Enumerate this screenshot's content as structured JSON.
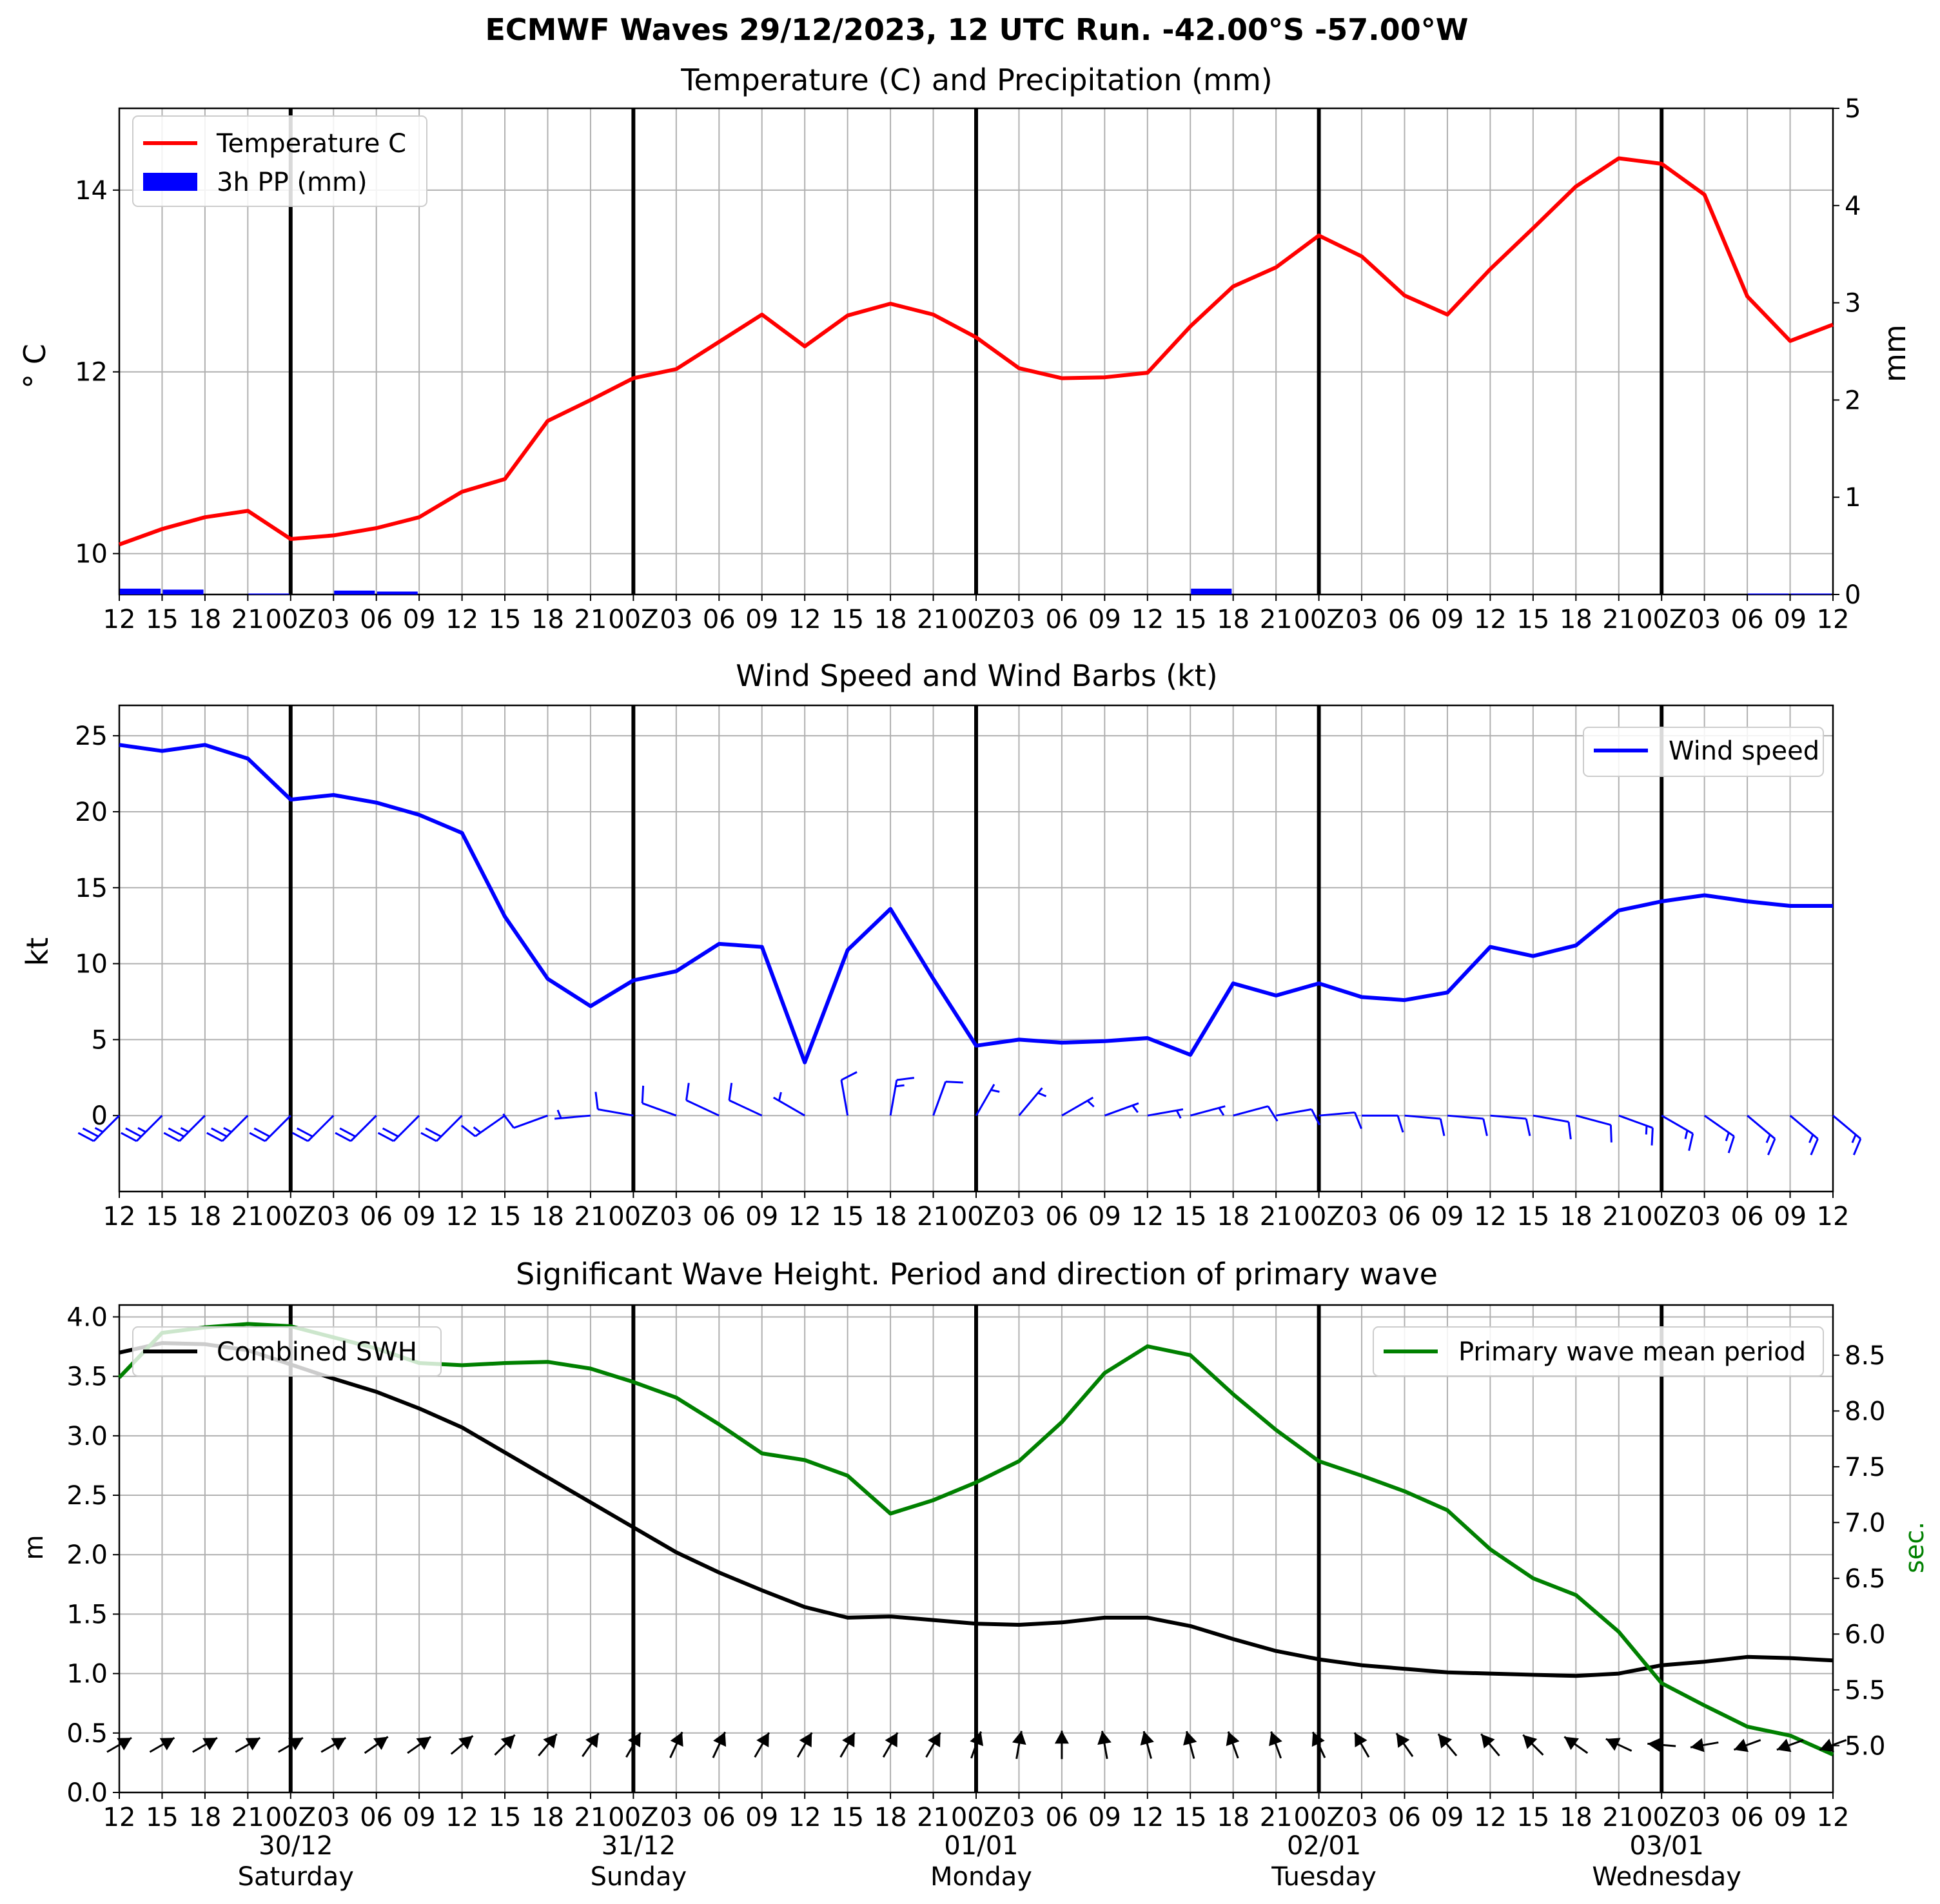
{
  "figure": {
    "title": "ECMWF Waves 29/12/2023, 12 UTC Run. -42.00°S -57.00°W"
  },
  "x_axis": {
    "tick_labels": [
      "12",
      "15",
      "18",
      "21",
      "00Z",
      "03",
      "06",
      "09",
      "12",
      "15",
      "18",
      "21",
      "00Z",
      "03",
      "06",
      "09",
      "12",
      "15",
      "18",
      "21",
      "00Z",
      "03",
      "06",
      "09",
      "12",
      "15",
      "18",
      "21",
      "00Z",
      "03",
      "06",
      "09",
      "12",
      "15",
      "18",
      "21",
      "00Z",
      "03",
      "06",
      "09",
      "12"
    ],
    "date_labels": [
      "30/12",
      "31/12",
      "01/01",
      "02/01",
      "03/01"
    ],
    "day_labels": [
      "Saturday",
      "Sunday",
      "Monday",
      "Tuesday",
      "Wednesday"
    ]
  },
  "colors": {
    "temperature": "#ff0000",
    "precipitation": "#0000ff",
    "wind": "#0000ff",
    "swh": "#000000",
    "period": "#008000",
    "grid": "#b0b0b0"
  },
  "chart_data": [
    {
      "type": "line",
      "title": "Temperature (C) and Precipitation (mm)",
      "ylabel": "$^\\circ$C",
      "ylabel_display": "° C",
      "y2label": "mm",
      "ylim": [
        9.55,
        14.9
      ],
      "y2lim": [
        0,
        5
      ],
      "yticks": [
        "10",
        "12",
        "14"
      ],
      "y2ticks": [
        "0",
        "1",
        "2",
        "3",
        "4",
        "5"
      ],
      "grid": true,
      "legend_position": "upper left",
      "series": [
        {
          "name": "Temperature C",
          "axis": "left",
          "values": [
            10.1,
            10.27,
            10.4,
            10.47,
            10.16,
            10.2,
            10.28,
            10.4,
            10.68,
            10.82,
            11.46,
            11.69,
            11.93,
            12.03,
            12.33,
            12.63,
            12.28,
            12.62,
            12.75,
            12.63,
            12.38,
            12.04,
            11.93,
            11.94,
            11.99,
            12.5,
            12.94,
            13.15,
            13.5,
            13.27,
            12.84,
            12.63,
            13.13,
            13.58,
            14.04,
            14.35,
            14.29,
            13.95,
            12.83,
            12.34,
            12.52
          ]
        },
        {
          "name": "3h PP (mm)",
          "axis": "right",
          "kind": "bar",
          "values": [
            0.06,
            0.05,
            0,
            0.01,
            0,
            0.04,
            0.03,
            0,
            0,
            0,
            0,
            0,
            0,
            0,
            0,
            0,
            0,
            0,
            0,
            0,
            0,
            0,
            0,
            0,
            0,
            0.06,
            0,
            0,
            0,
            0,
            0,
            0,
            0,
            0,
            0,
            0,
            0,
            0,
            0.01,
            0.01,
            0.01
          ]
        }
      ]
    },
    {
      "type": "line",
      "title": "Wind Speed and Wind Barbs (kt)",
      "ylabel": "kt",
      "ylim": [
        -5,
        27
      ],
      "yticks": [
        "0",
        "5",
        "10",
        "15",
        "20",
        "25"
      ],
      "grid": true,
      "legend_position": "upper right",
      "series": [
        {
          "name": "Wind speed",
          "values": [
            24.4,
            24.0,
            24.4,
            23.5,
            20.8,
            21.1,
            20.6,
            19.8,
            18.6,
            13.1,
            9.0,
            7.2,
            8.9,
            9.5,
            11.3,
            11.1,
            3.5,
            10.9,
            13.6,
            9.0,
            4.6,
            5.0,
            4.8,
            4.9,
            5.1,
            4.0,
            8.7,
            7.9,
            8.7,
            7.8,
            7.6,
            8.1,
            11.1,
            10.5,
            11.2,
            13.5,
            14.1,
            14.5,
            14.1,
            13.8,
            13.8
          ]
        }
      ],
      "wind_barbs": {
        "direction_from_deg": [
          225,
          225,
          225,
          225,
          225,
          225,
          225,
          225,
          225,
          235,
          250,
          265,
          280,
          290,
          295,
          295,
          300,
          350,
          10,
          20,
          30,
          40,
          60,
          70,
          80,
          75,
          75,
          80,
          85,
          90,
          95,
          95,
          95,
          100,
          105,
          110,
          120,
          125,
          130,
          130,
          130
        ],
        "speed_kt": [
          24.4,
          24.0,
          24.4,
          23.5,
          20.8,
          21.1,
          20.6,
          19.8,
          18.6,
          13.1,
          9.0,
          7.2,
          8.9,
          9.5,
          11.3,
          11.1,
          3.5,
          10.9,
          13.6,
          9.0,
          4.6,
          5.0,
          4.8,
          4.9,
          5.1,
          4.0,
          8.7,
          7.9,
          8.7,
          7.8,
          7.6,
          8.1,
          11.1,
          10.5,
          11.2,
          13.5,
          14.1,
          14.5,
          14.1,
          13.8,
          13.8
        ]
      }
    },
    {
      "type": "line",
      "title": "Significant Wave Height. Period and direction of primary wave",
      "ylabel": "m",
      "y2label": "sec.",
      "ylim": [
        0,
        4.1
      ],
      "y2lim": [
        4.58,
        8.95
      ],
      "yticks": [
        "0.0",
        "0.5",
        "1.0",
        "1.5",
        "2.0",
        "2.5",
        "3.0",
        "3.5",
        "4.0"
      ],
      "y2ticks": [
        "5.0",
        "5.5",
        "6.0",
        "6.5",
        "7.0",
        "7.5",
        "8.0",
        "8.5"
      ],
      "grid": true,
      "legend_positions": [
        "upper left",
        "upper right"
      ],
      "series": [
        {
          "name": "Combined SWH",
          "axis": "left",
          "values": [
            3.7,
            3.78,
            3.77,
            3.72,
            3.6,
            3.48,
            3.37,
            3.23,
            3.07,
            2.86,
            2.65,
            2.44,
            2.23,
            2.02,
            1.85,
            1.7,
            1.56,
            1.47,
            1.48,
            1.45,
            1.42,
            1.41,
            1.43,
            1.47,
            1.47,
            1.4,
            1.29,
            1.19,
            1.12,
            1.07,
            1.04,
            1.01,
            1.0,
            0.99,
            0.98,
            1.0,
            1.07,
            1.1,
            1.14,
            1.13,
            1.11
          ]
        },
        {
          "name": "Primary wave mean period",
          "axis": "right",
          "values": [
            8.3,
            8.7,
            8.75,
            8.78,
            8.76,
            8.66,
            8.56,
            8.43,
            8.41,
            8.43,
            8.44,
            8.38,
            8.26,
            8.12,
            7.88,
            7.62,
            7.56,
            7.42,
            7.08,
            7.2,
            7.36,
            7.55,
            7.9,
            8.34,
            8.58,
            8.5,
            8.15,
            7.83,
            7.55,
            7.42,
            7.28,
            7.11,
            6.76,
            6.5,
            6.35,
            6.02,
            5.56,
            5.36,
            5.17,
            5.09,
            4.92
          ]
        }
      ],
      "wave_direction_from_deg": [
        240,
        240,
        240,
        240,
        240,
        240,
        235,
        235,
        230,
        225,
        220,
        215,
        210,
        205,
        205,
        210,
        210,
        210,
        210,
        210,
        200,
        190,
        180,
        170,
        165,
        165,
        160,
        160,
        155,
        150,
        145,
        140,
        140,
        135,
        125,
        115,
        95,
        80,
        70,
        70,
        70
      ]
    }
  ]
}
